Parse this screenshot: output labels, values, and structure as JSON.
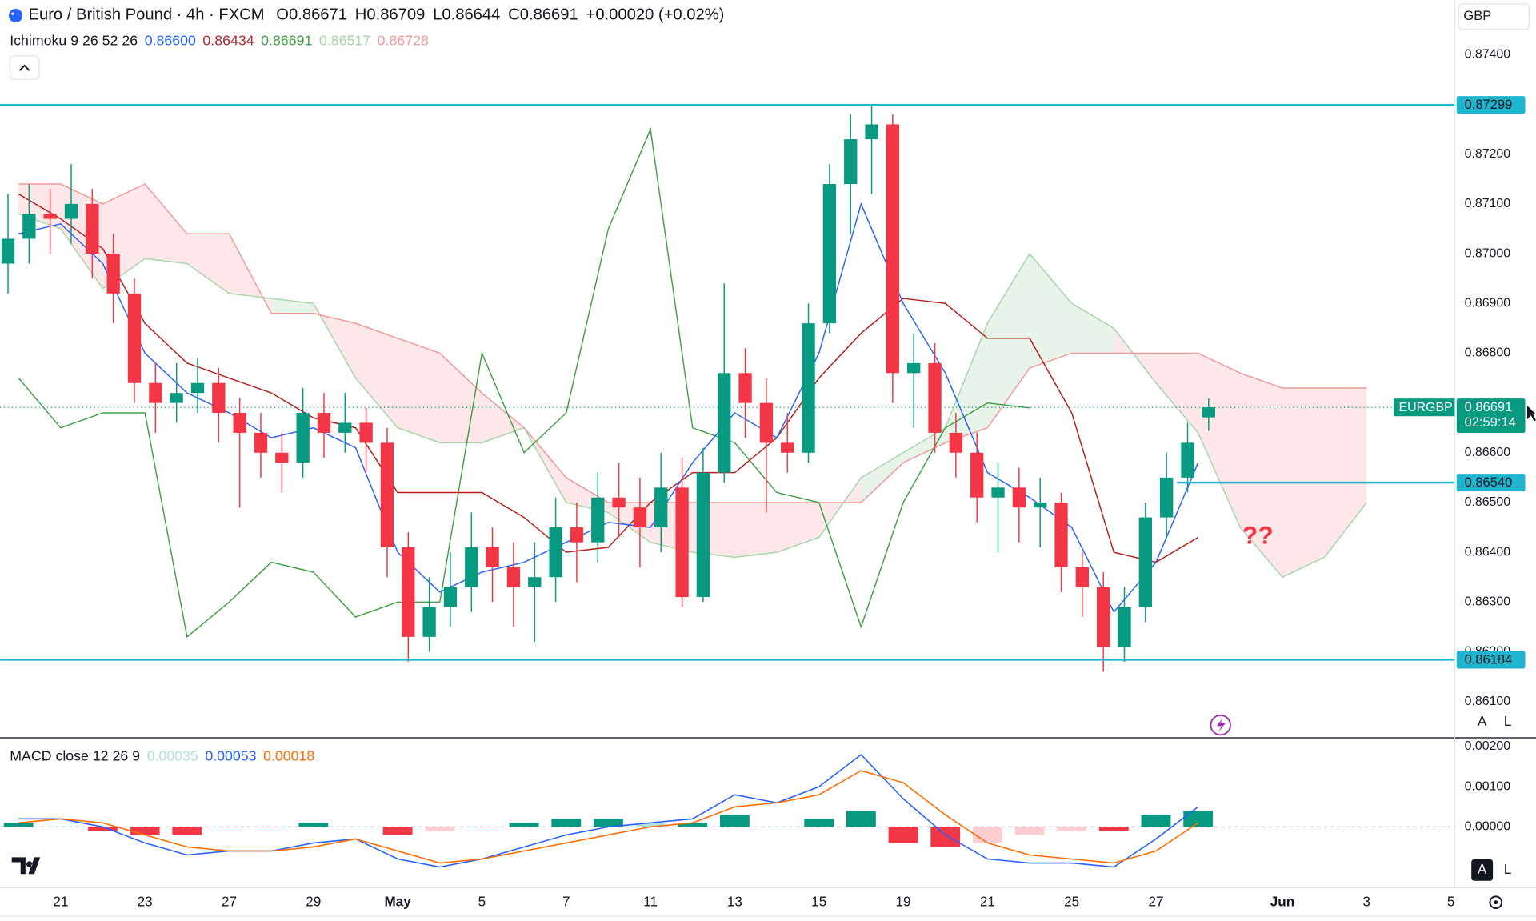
{
  "header": {
    "symbol": "Euro / British Pound · 4h · FXCM",
    "ohlc_labels": [
      "O",
      "H",
      "L",
      "C"
    ],
    "ohlc_values": [
      "0.86671",
      "0.86709",
      "0.86644",
      "0.86691"
    ],
    "change": "+0.00020 (+0.02%)",
    "currency": "GBP",
    "auto": "A",
    "log": "L"
  },
  "chart_data": [
    {
      "type": "candlestick",
      "indicator": {
        "label": "Ichimoku 9 26 52 26",
        "values": [
          "0.86600",
          "0.86434",
          "0.86691",
          "0.86517",
          "0.86728"
        ],
        "colors": [
          "#2962ff",
          "#b22833",
          "#43a047",
          "#a5d6a7",
          "#ef9a9a"
        ]
      },
      "xlim": [
        -1.44,
        33.09
      ],
      "ylim": [
        0.86029,
        0.8751
      ],
      "yticks": [
        {
          "value": 0.861,
          "label": "0.86100"
        },
        {
          "value": 0.862,
          "label": "0.86200"
        },
        {
          "value": 0.863,
          "label": "0.86300"
        },
        {
          "value": 0.864,
          "label": "0.86400"
        },
        {
          "value": 0.865,
          "label": "0.86500"
        },
        {
          "value": 0.866,
          "label": "0.86600"
        },
        {
          "value": 0.867,
          "label": "0.86700"
        },
        {
          "value": 0.868,
          "label": "0.86800"
        },
        {
          "value": 0.869,
          "label": "0.86900"
        },
        {
          "value": 0.87,
          "label": "0.87000"
        },
        {
          "value": 0.871,
          "label": "0.87100"
        },
        {
          "value": 0.872,
          "label": "0.87200"
        },
        {
          "value": 0.873,
          "label": "0.87300"
        },
        {
          "value": 0.874,
          "label": "0.87400"
        }
      ],
      "grid": false,
      "up_color": "#089981",
      "down_color": "#f23645",
      "x": [
        -1.25,
        -0.75,
        -0.25,
        0.25,
        0.75,
        1.25,
        1.75,
        2.25,
        2.75,
        3.25,
        3.75,
        4.25,
        4.75,
        5.25,
        5.75,
        6.25,
        6.75,
        7.25,
        7.75,
        8.25,
        8.75,
        9.25,
        9.75,
        10.25,
        10.75,
        11.25,
        11.75,
        12.25,
        12.75,
        13.25,
        13.75,
        14.25,
        14.75,
        15.25,
        15.75,
        16.25,
        16.75,
        17.25,
        17.75,
        18.25,
        18.75,
        19.25,
        19.75,
        20.25,
        20.75,
        21.25,
        21.75,
        22.25,
        22.75,
        23.25,
        23.75,
        24.25,
        24.75,
        25.25,
        25.75,
        26.25,
        26.75,
        27.25
      ],
      "open": [
        0.8698,
        0.8703,
        0.8708,
        0.8707,
        0.871,
        0.87,
        0.8692,
        0.8674,
        0.867,
        0.8672,
        0.8674,
        0.8668,
        0.8664,
        0.866,
        0.8658,
        0.8668,
        0.8664,
        0.8666,
        0.8662,
        0.8641,
        0.8623,
        0.8629,
        0.8633,
        0.8641,
        0.8637,
        0.8633,
        0.8635,
        0.8645,
        0.8642,
        0.8651,
        0.8649,
        0.8645,
        0.8653,
        0.8631,
        0.8656,
        0.8676,
        0.867,
        0.8662,
        0.866,
        0.8686,
        0.8714,
        0.8723,
        0.8726,
        0.8676,
        0.8678,
        0.8664,
        0.866,
        0.8651,
        0.8653,
        0.8649,
        0.865,
        0.8637,
        0.8633,
        0.8621,
        0.8629,
        0.8647,
        0.8655,
        0.86671
      ],
      "high": [
        0.8712,
        0.8714,
        0.8713,
        0.8718,
        0.8713,
        0.8704,
        0.8695,
        0.8678,
        0.8678,
        0.8679,
        0.8677,
        0.8671,
        0.8668,
        0.8664,
        0.8673,
        0.8672,
        0.8672,
        0.8669,
        0.8665,
        0.8644,
        0.8635,
        0.864,
        0.8648,
        0.8645,
        0.8642,
        0.8642,
        0.8651,
        0.865,
        0.8656,
        0.8658,
        0.8655,
        0.866,
        0.8659,
        0.8661,
        0.8694,
        0.8681,
        0.8675,
        0.8668,
        0.869,
        0.8718,
        0.8728,
        0.873,
        0.8728,
        0.8684,
        0.8682,
        0.8668,
        0.8664,
        0.8658,
        0.8657,
        0.8655,
        0.8652,
        0.864,
        0.8636,
        0.8633,
        0.865,
        0.866,
        0.8666,
        0.86709
      ],
      "low": [
        0.8692,
        0.8698,
        0.87,
        0.8702,
        0.8695,
        0.8686,
        0.867,
        0.8664,
        0.8666,
        0.8668,
        0.8662,
        0.8649,
        0.8655,
        0.8652,
        0.8655,
        0.8659,
        0.866,
        0.8656,
        0.8635,
        0.8618,
        0.862,
        0.8625,
        0.8628,
        0.863,
        0.8625,
        0.8622,
        0.863,
        0.8634,
        0.8638,
        0.8643,
        0.8637,
        0.864,
        0.8629,
        0.863,
        0.8654,
        0.8663,
        0.8648,
        0.8656,
        0.8658,
        0.8684,
        0.8704,
        0.8712,
        0.867,
        0.8665,
        0.866,
        0.8655,
        0.8646,
        0.864,
        0.8642,
        0.8641,
        0.8632,
        0.8627,
        0.8616,
        0.8618,
        0.8626,
        0.8643,
        0.8652,
        0.86644
      ],
      "close": [
        0.8703,
        0.8708,
        0.8707,
        0.871,
        0.87,
        0.8692,
        0.8674,
        0.867,
        0.8672,
        0.8674,
        0.8668,
        0.8664,
        0.866,
        0.8658,
        0.8668,
        0.8664,
        0.8666,
        0.8662,
        0.8641,
        0.8623,
        0.8629,
        0.8633,
        0.8641,
        0.8637,
        0.8633,
        0.8635,
        0.8645,
        0.8642,
        0.8651,
        0.8649,
        0.8645,
        0.8653,
        0.8631,
        0.8656,
        0.8676,
        0.867,
        0.8662,
        0.866,
        0.8686,
        0.8714,
        0.8723,
        0.8726,
        0.8676,
        0.8678,
        0.8664,
        0.866,
        0.8651,
        0.8653,
        0.8649,
        0.865,
        0.8637,
        0.8633,
        0.8621,
        0.8629,
        0.8647,
        0.8655,
        0.8662,
        0.86691
      ],
      "ichimoku": {
        "conversion": {
          "color": "#2962ff",
          "x": [
            -1,
            0,
            1,
            2,
            3,
            4,
            5,
            6,
            7,
            8,
            9,
            10,
            11,
            12,
            13,
            14,
            15,
            16,
            17,
            18,
            19,
            20,
            21,
            22,
            23,
            24,
            25,
            26,
            27
          ],
          "values": [
            0.8704,
            0.8706,
            0.8698,
            0.868,
            0.8672,
            0.8668,
            0.8663,
            0.8665,
            0.8661,
            0.864,
            0.8632,
            0.8636,
            0.8638,
            0.8642,
            0.8646,
            0.8645,
            0.8658,
            0.8668,
            0.8663,
            0.868,
            0.871,
            0.869,
            0.8676,
            0.8656,
            0.8651,
            0.8645,
            0.8628,
            0.8638,
            0.8658
          ]
        },
        "base": {
          "color": "#b71c1c",
          "x": [
            -1,
            0,
            1,
            2,
            3,
            4,
            5,
            6,
            7,
            8,
            9,
            10,
            11,
            12,
            13,
            14,
            15,
            16,
            17,
            18,
            19,
            20,
            21,
            22,
            23,
            24,
            25,
            26,
            27
          ],
          "values": [
            0.8712,
            0.8707,
            0.8701,
            0.8686,
            0.8678,
            0.8675,
            0.8672,
            0.8667,
            0.8665,
            0.8652,
            0.8652,
            0.8652,
            0.8647,
            0.864,
            0.8641,
            0.865,
            0.8656,
            0.8656,
            0.8663,
            0.8675,
            0.8684,
            0.8691,
            0.869,
            0.8683,
            0.8683,
            0.8668,
            0.864,
            0.8638,
            0.8643
          ]
        },
        "lagging": {
          "color": "#43a047",
          "x": [
            -1,
            0,
            1,
            2,
            3,
            4,
            5,
            6,
            7,
            8,
            9,
            10,
            11,
            12,
            13,
            14,
            15,
            16,
            17,
            18,
            19,
            20,
            21,
            22,
            23
          ],
          "values": [
            0.8675,
            0.8665,
            0.8668,
            0.8668,
            0.8623,
            0.863,
            0.8638,
            0.8636,
            0.8627,
            0.863,
            0.863,
            0.868,
            0.866,
            0.8668,
            0.8705,
            0.8725,
            0.8665,
            0.8662,
            0.8652,
            0.865,
            0.8625,
            0.865,
            0.8665,
            0.867,
            0.8669
          ]
        },
        "span_a": {
          "color": "#a5d6a7",
          "fill": "rgba(67,160,71,0.12)",
          "x": [
            -1,
            0,
            1,
            2,
            3,
            4,
            5,
            6,
            7,
            8,
            9,
            10,
            11,
            12,
            13,
            14,
            15,
            16,
            17,
            18,
            19,
            20,
            21,
            22,
            23,
            24,
            25,
            26,
            27,
            28,
            29,
            30,
            31
          ],
          "values": [
            0.8708,
            0.8705,
            0.8693,
            0.8699,
            0.8698,
            0.8692,
            0.8691,
            0.869,
            0.8675,
            0.8665,
            0.8662,
            0.8662,
            0.8665,
            0.865,
            0.8648,
            0.8642,
            0.864,
            0.8639,
            0.864,
            0.8643,
            0.8655,
            0.866,
            0.8665,
            0.8686,
            0.87,
            0.869,
            0.8685,
            0.8674,
            0.8664,
            0.8645,
            0.8635,
            0.8639,
            0.865
          ]
        },
        "span_b": {
          "color": "#ef9a9a",
          "fill": "rgba(242,54,69,0.12)",
          "x": [
            -1,
            0,
            1,
            2,
            3,
            4,
            5,
            6,
            7,
            8,
            9,
            10,
            11,
            12,
            13,
            14,
            15,
            16,
            17,
            18,
            19,
            20,
            21,
            22,
            23,
            24,
            25,
            26,
            27,
            28,
            29,
            30,
            31
          ],
          "values": [
            0.8714,
            0.8714,
            0.871,
            0.8714,
            0.8704,
            0.8704,
            0.8688,
            0.8688,
            0.8686,
            0.8683,
            0.868,
            0.8672,
            0.8665,
            0.8655,
            0.865,
            0.865,
            0.865,
            0.865,
            0.865,
            0.865,
            0.865,
            0.8658,
            0.8662,
            0.8665,
            0.8677,
            0.868,
            0.868,
            0.868,
            0.868,
            0.8676,
            0.8673,
            0.8673,
            0.8673
          ]
        }
      },
      "levels": [
        0.87299,
        {
          "value": 0.8654,
          "label": "0.86540",
          "x_from": 26.5
        },
        0.86184
      ],
      "level_color": "#1eb6cf",
      "last_price": 0.86691,
      "symbol_label": "EURGBP",
      "countdown": "02:59:14",
      "annotation": "??"
    },
    {
      "type": "macd",
      "indicator": {
        "label": "MACD close 12 26 9",
        "values": [
          "0.00035",
          "0.00053",
          "0.00018"
        ],
        "colors": [
          "#b2dfdb",
          "#2962ff",
          "#ff6d00"
        ]
      },
      "xlim": [
        -1.44,
        33.09
      ],
      "ylim": [
        -0.00149,
        0.00217
      ],
      "yticks": [
        {
          "value": 0.002,
          "label": "0.00200"
        },
        {
          "value": 0.001,
          "label": "0.00100"
        },
        {
          "value": 0,
          "label": "0.00000"
        }
      ],
      "xticks": [
        {
          "value": 0,
          "label": "21"
        },
        {
          "value": 2,
          "label": "23"
        },
        {
          "value": 4,
          "label": "27"
        },
        {
          "value": 6,
          "label": "29"
        },
        {
          "value": 8,
          "label": "May"
        },
        {
          "value": 10,
          "label": "5"
        },
        {
          "value": 12,
          "label": "7"
        },
        {
          "value": 14,
          "label": "11"
        },
        {
          "value": 16,
          "label": "13"
        },
        {
          "value": 18,
          "label": "15"
        },
        {
          "value": 20,
          "label": "19"
        },
        {
          "value": 22,
          "label": "21"
        },
        {
          "value": 24,
          "label": "25"
        },
        {
          "value": 26,
          "label": "27"
        },
        {
          "value": 29,
          "label": "Jun"
        },
        {
          "value": 31,
          "label": "3"
        },
        {
          "value": 33,
          "label": "5"
        }
      ],
      "x": [
        -1,
        0,
        1,
        2,
        3,
        4,
        5,
        6,
        7,
        8,
        9,
        10,
        11,
        12,
        13,
        14,
        15,
        16,
        17,
        18,
        19,
        20,
        21,
        22,
        23,
        24,
        25,
        26,
        27
      ],
      "series": [
        {
          "name": "MACD",
          "color": "#2962ff",
          "values": [
            0.0002,
            0.0002,
            0,
            -0.0004,
            -0.0007,
            -0.0006,
            -0.0006,
            -0.0004,
            -0.0003,
            -0.0008,
            -0.001,
            -0.0008,
            -0.0005,
            -0.0002,
            0,
            0.0001,
            0.0002,
            0.0008,
            0.0006,
            0.001,
            0.0018,
            0.0007,
            -0.0002,
            -0.0008,
            -0.0009,
            -0.0009,
            -0.001,
            -0.0003,
            0.0005
          ]
        },
        {
          "name": "Signal",
          "color": "#ff6d00",
          "values": [
            0.0001,
            0.0002,
            0.0001,
            -0.0002,
            -0.0005,
            -0.0006,
            -0.0006,
            -0.0005,
            -0.0003,
            -0.0006,
            -0.0009,
            -0.0008,
            -0.0006,
            -0.0004,
            -0.0002,
            0,
            0.0001,
            0.0005,
            0.0006,
            0.0008,
            0.0014,
            0.0011,
            0.0003,
            -0.0004,
            -0.0007,
            -0.0008,
            -0.0009,
            -0.0006,
            0.0001
          ]
        }
      ],
      "histogram": [
        0.0001,
        0,
        -0.0001,
        -0.0002,
        -0.0002,
        0,
        0,
        0.0001,
        0,
        -0.0002,
        -0.0001,
        0,
        0.0001,
        0.0002,
        0.0002,
        0.0001,
        0.0001,
        0.0003,
        0,
        0.0002,
        0.0004,
        -0.0004,
        -0.0005,
        -0.0004,
        -0.0002,
        -0.0001,
        -0.0001,
        0.0003,
        0.0004
      ],
      "hist_colors": [
        "#089981",
        "#b2dfdb",
        "#f23645",
        "#ffcdd2"
      ]
    }
  ]
}
